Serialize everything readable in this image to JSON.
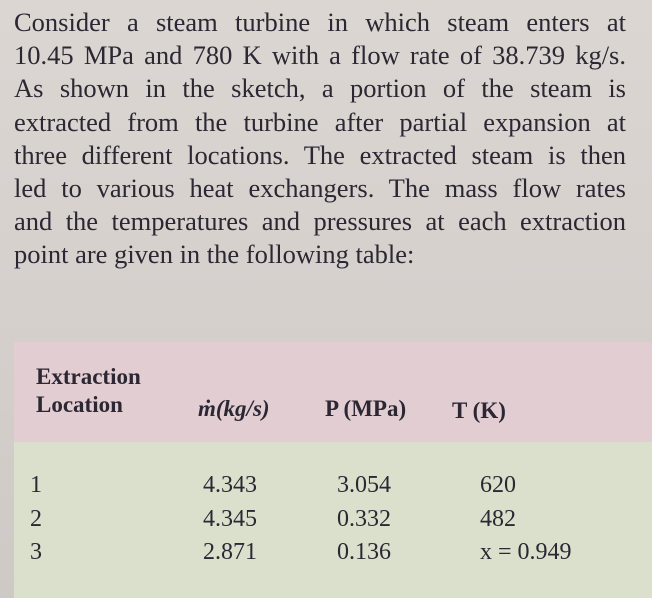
{
  "paragraph": [
    "Consider a steam turbine in which steam enters at",
    "10.45 MPa and 780 K with a flow rate of 38.739 kg/s.",
    "As shown in the sketch, a portion of the steam is",
    "extracted from the turbine after partial expansion at",
    "three different locations. The extracted steam is then",
    "led to various heat exchangers. The mass flow rates",
    "and the temperatures and pressures at each extraction",
    "point are given in the following table:"
  ],
  "table": {
    "header": [
      [
        "Extraction",
        "Location"
      ],
      "ṁ(kg/s)",
      "P (MPa)",
      "T (K)"
    ],
    "rows": [
      [
        "1",
        "4.343",
        "3.054",
        "620"
      ],
      [
        "2",
        "4.345",
        "0.332",
        "482"
      ],
      [
        "3",
        "2.871",
        "0.136",
        "x = 0.949"
      ]
    ]
  }
}
